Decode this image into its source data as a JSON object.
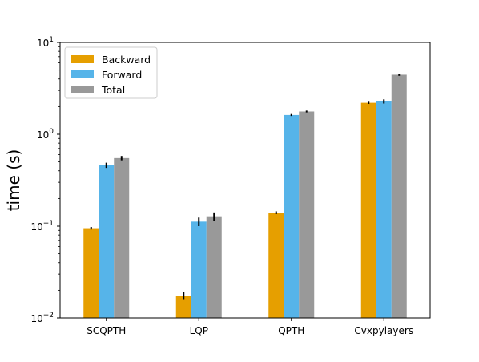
{
  "chart_data": {
    "type": "bar",
    "yscale": "log",
    "ylabel": "time (s)",
    "xlabel": "",
    "title": "",
    "ylim": [
      0.01,
      10
    ],
    "yticks": [
      {
        "value": 0.01,
        "base": "10",
        "exp": "−2"
      },
      {
        "value": 0.1,
        "base": "10",
        "exp": "−1"
      },
      {
        "value": 1,
        "base": "10",
        "exp": "0"
      },
      {
        "value": 10,
        "base": "10",
        "exp": "1"
      }
    ],
    "categories": [
      "SCQPTH",
      "LQP",
      "QPTH",
      "Cvxpylayers"
    ],
    "series": [
      {
        "name": "Backward",
        "color": "#e69f00",
        "values": [
          0.095,
          0.0175,
          0.14,
          2.2
        ],
        "errors": [
          0.003,
          0.0015,
          0.005,
          0.06
        ]
      },
      {
        "name": "Forward",
        "color": "#56b4e9",
        "values": [
          0.46,
          0.112,
          1.62,
          2.28
        ],
        "errors": [
          0.03,
          0.012,
          0.04,
          0.12
        ]
      },
      {
        "name": "Total",
        "color": "#999999",
        "values": [
          0.55,
          0.128,
          1.77,
          4.45
        ],
        "errors": [
          0.03,
          0.013,
          0.04,
          0.12
        ]
      }
    ],
    "legend": {
      "position": "top-left"
    },
    "grid": false
  }
}
